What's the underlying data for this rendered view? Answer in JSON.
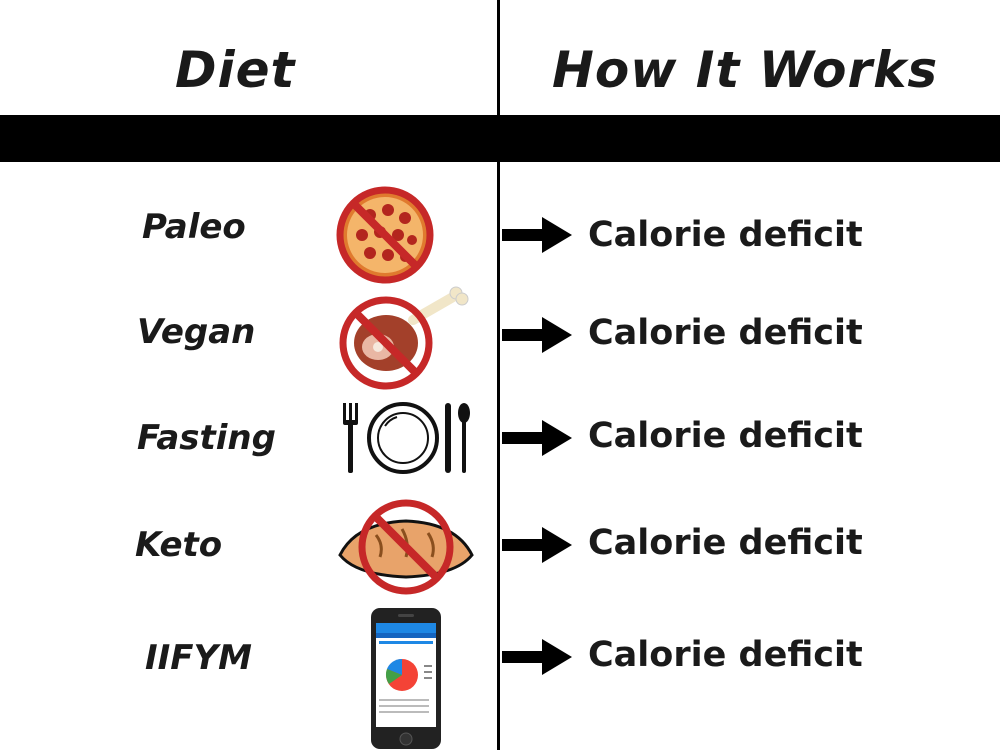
{
  "header": {
    "left_title": "Diet",
    "right_title": "How It Works"
  },
  "rows": [
    {
      "diet": "Paleo",
      "icon": "no-pizza-icon",
      "effect": "Calorie deficit"
    },
    {
      "diet": "Vegan",
      "icon": "no-meat-icon",
      "effect": "Calorie deficit"
    },
    {
      "diet": "Fasting",
      "icon": "empty-plate-icon",
      "effect": "Calorie deficit"
    },
    {
      "diet": "Keto",
      "icon": "no-bread-icon",
      "effect": "Calorie deficit"
    },
    {
      "diet": "IIFYM",
      "icon": "phone-app-icon",
      "effect": "Calorie deficit"
    }
  ],
  "colors": {
    "prohibition": "#c62828",
    "pizza": "#e07a2e",
    "pepperoni": "#b3261e",
    "bread": "#e8a36a",
    "phone": "#222222",
    "app_blue": "#1e88e5"
  }
}
